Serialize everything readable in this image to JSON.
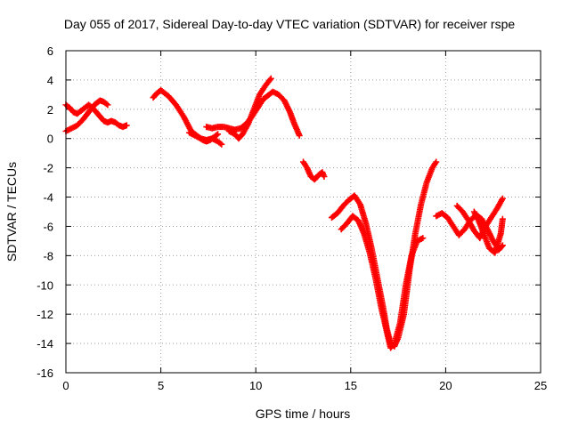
{
  "chart_data": {
    "type": "scatter",
    "title": "Day 055 of 2017, Sidereal Day-to-day VTEC variation (SDTVAR) for receiver rspe",
    "xlabel": "GPS time / hours",
    "ylabel": "SDTVAR / TECUs",
    "xlim": [
      0,
      25
    ],
    "ylim": [
      -16,
      6
    ],
    "xticks": [
      0,
      5,
      10,
      15,
      20,
      25
    ],
    "yticks": [
      -16,
      -14,
      -12,
      -10,
      -8,
      -6,
      -4,
      -2,
      0,
      2,
      4,
      6
    ],
    "grid": true,
    "legend": "none",
    "marker": "plus",
    "color": "#ff0000",
    "series": [
      {
        "points": [
          [
            0.0,
            2.3
          ],
          [
            0.2,
            2.1
          ],
          [
            0.4,
            1.8
          ],
          [
            0.6,
            1.7
          ],
          [
            0.8,
            1.9
          ],
          [
            1.0,
            2.1
          ],
          [
            1.2,
            2.3
          ],
          [
            1.4,
            2.1
          ],
          [
            1.6,
            1.8
          ],
          [
            1.8,
            1.5
          ],
          [
            2.0,
            1.2
          ],
          [
            2.2,
            1.1
          ],
          [
            2.4,
            1.2
          ],
          [
            2.6,
            1.1
          ],
          [
            2.8,
            0.9
          ],
          [
            3.0,
            0.8
          ],
          [
            3.2,
            0.9
          ]
        ]
      },
      {
        "points": [
          [
            0.0,
            0.5
          ],
          [
            0.3,
            0.7
          ],
          [
            0.6,
            0.9
          ],
          [
            0.9,
            1.3
          ],
          [
            1.2,
            1.8
          ],
          [
            1.5,
            2.3
          ],
          [
            1.8,
            2.6
          ],
          [
            2.0,
            2.5
          ],
          [
            2.2,
            2.3
          ]
        ]
      },
      {
        "points": [
          [
            4.6,
            2.8
          ],
          [
            4.8,
            3.1
          ],
          [
            5.0,
            3.3
          ],
          [
            5.2,
            3.1
          ],
          [
            5.4,
            2.9
          ],
          [
            5.6,
            2.6
          ],
          [
            5.8,
            2.3
          ],
          [
            6.0,
            1.9
          ],
          [
            6.2,
            1.5
          ],
          [
            6.4,
            1.0
          ],
          [
            6.6,
            0.5
          ],
          [
            6.8,
            0.3
          ],
          [
            7.0,
            0.1
          ],
          [
            7.2,
            -0.1
          ],
          [
            7.4,
            -0.2
          ],
          [
            7.6,
            -0.1
          ],
          [
            7.8,
            0.1
          ],
          [
            8.0,
            0.3
          ]
        ]
      },
      {
        "points": [
          [
            6.5,
            0.4
          ],
          [
            6.8,
            0.2
          ],
          [
            7.1,
            0.0
          ],
          [
            7.4,
            -0.1
          ],
          [
            7.7,
            0.0
          ],
          [
            8.0,
            -0.2
          ],
          [
            8.2,
            -0.4
          ]
        ]
      },
      {
        "points": [
          [
            7.4,
            0.8
          ],
          [
            7.7,
            0.7
          ],
          [
            8.0,
            0.8
          ],
          [
            8.3,
            0.8
          ],
          [
            8.6,
            0.7
          ],
          [
            8.9,
            0.6
          ],
          [
            9.2,
            0.7
          ],
          [
            9.5,
            1.0
          ],
          [
            9.8,
            1.5
          ],
          [
            10.1,
            2.1
          ],
          [
            10.4,
            2.7
          ],
          [
            10.7,
            3.0
          ],
          [
            10.9,
            3.2
          ],
          [
            11.2,
            3.0
          ],
          [
            11.5,
            2.6
          ],
          [
            11.8,
            1.8
          ],
          [
            12.0,
            1.1
          ],
          [
            12.3,
            0.2
          ]
        ]
      },
      {
        "points": [
          [
            8.6,
            0.5
          ],
          [
            8.9,
            0.3
          ],
          [
            9.1,
            0.0
          ],
          [
            9.3,
            0.3
          ],
          [
            9.6,
            1.0
          ],
          [
            9.9,
            2.0
          ],
          [
            10.2,
            3.0
          ],
          [
            10.5,
            3.6
          ],
          [
            10.8,
            4.1
          ]
        ]
      },
      {
        "points": [
          [
            12.5,
            -1.6
          ],
          [
            12.7,
            -2.0
          ],
          [
            12.9,
            -2.6
          ],
          [
            13.1,
            -2.8
          ],
          [
            13.3,
            -2.5
          ],
          [
            13.5,
            -2.3
          ],
          [
            13.6,
            -2.6
          ]
        ]
      },
      {
        "points": [
          [
            14.0,
            -5.4
          ],
          [
            14.3,
            -5.1
          ],
          [
            14.6,
            -4.6
          ],
          [
            14.9,
            -4.2
          ],
          [
            15.2,
            -3.9
          ],
          [
            15.5,
            -4.5
          ],
          [
            15.8,
            -5.8
          ],
          [
            16.1,
            -7.5
          ],
          [
            16.4,
            -9.5
          ],
          [
            16.7,
            -11.5
          ],
          [
            16.9,
            -13.0
          ],
          [
            17.1,
            -14.0
          ],
          [
            17.3,
            -14.2
          ],
          [
            17.5,
            -13.6
          ],
          [
            17.8,
            -12.0
          ],
          [
            18.1,
            -9.0
          ],
          [
            18.4,
            -6.5
          ],
          [
            18.7,
            -4.5
          ],
          [
            19.0,
            -3.0
          ],
          [
            19.3,
            -2.0
          ],
          [
            19.5,
            -1.6
          ]
        ]
      },
      {
        "points": [
          [
            14.5,
            -6.2
          ],
          [
            14.8,
            -5.8
          ],
          [
            15.1,
            -5.3
          ],
          [
            15.4,
            -5.6
          ],
          [
            15.7,
            -6.5
          ],
          [
            16.0,
            -7.8
          ],
          [
            16.3,
            -9.5
          ],
          [
            16.6,
            -11.5
          ],
          [
            16.9,
            -13.2
          ],
          [
            17.1,
            -14.3
          ],
          [
            17.3,
            -14.0
          ],
          [
            17.6,
            -12.6
          ],
          [
            17.9,
            -10.0
          ],
          [
            18.2,
            -8.0
          ],
          [
            18.5,
            -7.0
          ],
          [
            18.8,
            -6.8
          ]
        ]
      },
      {
        "points": [
          [
            19.5,
            -5.3
          ],
          [
            19.8,
            -5.1
          ],
          [
            20.1,
            -5.4
          ],
          [
            20.4,
            -6.0
          ],
          [
            20.7,
            -6.6
          ],
          [
            21.0,
            -6.2
          ],
          [
            21.3,
            -5.6
          ],
          [
            21.6,
            -5.2
          ],
          [
            21.9,
            -5.5
          ],
          [
            22.2,
            -6.2
          ],
          [
            22.5,
            -7.0
          ],
          [
            22.8,
            -7.6
          ],
          [
            23.0,
            -7.3
          ]
        ]
      },
      {
        "points": [
          [
            20.6,
            -4.6
          ],
          [
            20.9,
            -5.0
          ],
          [
            21.2,
            -5.6
          ],
          [
            21.5,
            -6.3
          ],
          [
            21.8,
            -6.8
          ],
          [
            22.1,
            -6.0
          ],
          [
            22.4,
            -5.4
          ],
          [
            22.7,
            -4.8
          ],
          [
            23.0,
            -4.1
          ]
        ]
      },
      {
        "points": [
          [
            21.5,
            -5.0
          ],
          [
            21.8,
            -5.8
          ],
          [
            22.0,
            -6.5
          ],
          [
            22.3,
            -7.5
          ],
          [
            22.6,
            -7.8
          ],
          [
            22.9,
            -6.5
          ],
          [
            23.0,
            -5.5
          ]
        ]
      }
    ]
  }
}
